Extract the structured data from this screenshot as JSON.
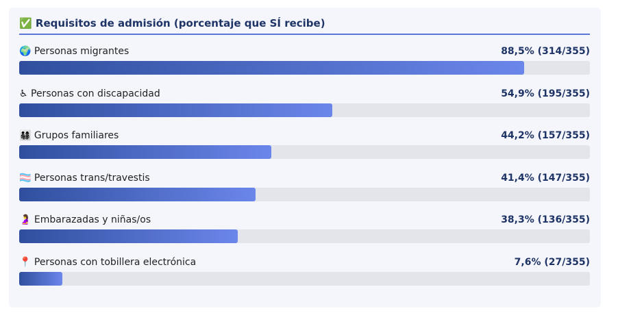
{
  "chart_data": {
    "type": "bar",
    "title": "✅ Requisitos de admisión (porcentaje que SÍ recibe)",
    "categories": [
      "🌍 Personas migrantes",
      "♿ Personas con discapacidad",
      "👨‍👩‍👧‍👦 Grupos familiares",
      "🏳️‍⚧️ Personas trans/travestis",
      "🤰 Embarazadas y niñas/os",
      "📍 Personas con tobillera electrónica"
    ],
    "values": [
      88.5,
      54.9,
      44.2,
      41.4,
      38.3,
      7.6
    ],
    "value_labels": [
      "88,5% (314/355)",
      "54,9% (195/355)",
      "44,2% (157/355)",
      "41,4% (147/355)",
      "38,3% (136/355)",
      "7,6% (27/355)"
    ],
    "xlim": [
      0,
      100
    ],
    "color": [
      "#2f4f9e",
      "#6b86ea"
    ]
  }
}
